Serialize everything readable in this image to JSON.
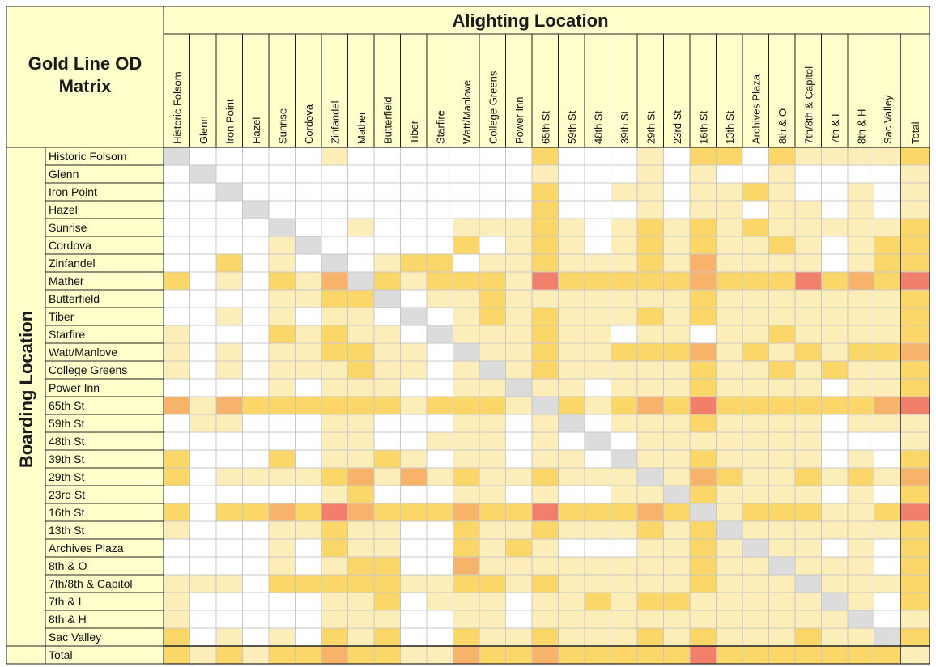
{
  "chart_data": {
    "type": "heatmap",
    "title": "Gold Line OD Matrix",
    "xlabel": "Alighting Location",
    "ylabel": "Boarding Location",
    "columns": [
      "Historic Folsom",
      "Glenn",
      "Iron Point",
      "Hazel",
      "Sunrise",
      "Cordova",
      "Zinfandel",
      "Mather",
      "Butterfield",
      "Tiber",
      "Starfire",
      "Watt/Manlove",
      "College Greens",
      "Power Inn",
      "65th St",
      "59th St",
      "48th St",
      "39th St",
      "29th St",
      "23rd St",
      "16th St",
      "13th St",
      "Archives Plaza",
      "8th & O",
      "7th/8th & Capitol",
      "7th & I",
      "8th & H",
      "Sac Valley",
      "Total"
    ],
    "rows": [
      "Historic Folsom",
      "Glenn",
      "Iron Point",
      "Hazel",
      "Sunrise",
      "Cordova",
      "Zinfandel",
      "Mather",
      "Butterfield",
      "Tiber",
      "Starfire",
      "Watt/Manlove",
      "College Greens",
      "Power Inn",
      "65th St",
      "59th St",
      "48th St",
      "39th St",
      "29th St",
      "23rd St",
      "16th St",
      "13th St",
      "Archives Plaza",
      "8th & O",
      "7th/8th & Capitol",
      "7th & I",
      "8th & H",
      "Sac Valley",
      "Total"
    ],
    "scale_note": "cell shading level 0-4 (none, light yellow, yellow, orange, red); -1 = diagonal (grey)",
    "values": [
      [
        -1,
        0,
        0,
        0,
        0,
        0,
        1,
        0,
        0,
        0,
        0,
        0,
        0,
        0,
        2,
        0,
        0,
        0,
        1,
        0,
        2,
        2,
        0,
        2,
        1,
        1,
        1,
        1,
        2
      ],
      [
        0,
        -1,
        0,
        0,
        0,
        0,
        0,
        0,
        0,
        0,
        0,
        0,
        0,
        0,
        1,
        0,
        0,
        0,
        1,
        0,
        1,
        0,
        0,
        1,
        0,
        0,
        0,
        0,
        1
      ],
      [
        0,
        0,
        -1,
        0,
        0,
        0,
        0,
        0,
        0,
        0,
        0,
        0,
        0,
        0,
        2,
        0,
        0,
        1,
        1,
        0,
        1,
        1,
        2,
        1,
        0,
        0,
        1,
        0,
        1
      ],
      [
        0,
        0,
        0,
        -1,
        0,
        0,
        0,
        0,
        0,
        0,
        0,
        0,
        0,
        0,
        2,
        0,
        0,
        0,
        1,
        0,
        1,
        1,
        0,
        1,
        1,
        0,
        1,
        0,
        1
      ],
      [
        0,
        0,
        0,
        0,
        -1,
        0,
        0,
        1,
        0,
        0,
        0,
        1,
        1,
        1,
        2,
        1,
        0,
        1,
        2,
        1,
        2,
        1,
        2,
        1,
        1,
        1,
        1,
        1,
        2
      ],
      [
        0,
        0,
        0,
        0,
        1,
        -1,
        0,
        0,
        0,
        0,
        0,
        2,
        0,
        1,
        2,
        1,
        0,
        1,
        2,
        1,
        2,
        1,
        1,
        2,
        1,
        0,
        1,
        2,
        2
      ],
      [
        0,
        0,
        2,
        0,
        1,
        0,
        -1,
        0,
        1,
        2,
        2,
        0,
        1,
        1,
        2,
        1,
        1,
        1,
        2,
        1,
        3,
        1,
        1,
        1,
        1,
        0,
        1,
        2,
        2
      ],
      [
        2,
        0,
        1,
        0,
        2,
        1,
        3,
        -1,
        2,
        1,
        2,
        2,
        2,
        1,
        4,
        2,
        2,
        2,
        2,
        2,
        3,
        2,
        2,
        2,
        4,
        2,
        3,
        2,
        4
      ],
      [
        0,
        0,
        0,
        0,
        1,
        1,
        2,
        2,
        -1,
        0,
        1,
        1,
        2,
        1,
        1,
        1,
        1,
        1,
        1,
        1,
        2,
        1,
        1,
        1,
        1,
        1,
        1,
        1,
        2
      ],
      [
        0,
        0,
        1,
        0,
        1,
        0,
        1,
        1,
        0,
        -1,
        0,
        1,
        2,
        1,
        2,
        1,
        1,
        1,
        2,
        1,
        2,
        1,
        1,
        1,
        1,
        1,
        1,
        1,
        2
      ],
      [
        1,
        0,
        0,
        0,
        2,
        1,
        2,
        1,
        1,
        0,
        -1,
        1,
        1,
        1,
        2,
        1,
        1,
        0,
        1,
        1,
        0,
        1,
        1,
        2,
        1,
        1,
        1,
        1,
        2
      ],
      [
        1,
        0,
        1,
        0,
        1,
        1,
        2,
        2,
        1,
        1,
        0,
        -1,
        1,
        1,
        2,
        1,
        1,
        2,
        2,
        2,
        3,
        1,
        2,
        1,
        2,
        1,
        2,
        2,
        3
      ],
      [
        1,
        0,
        1,
        0,
        1,
        1,
        1,
        2,
        1,
        1,
        0,
        1,
        -1,
        1,
        2,
        1,
        1,
        1,
        1,
        1,
        2,
        1,
        1,
        2,
        1,
        2,
        1,
        1,
        2
      ],
      [
        0,
        0,
        0,
        0,
        1,
        0,
        1,
        1,
        1,
        0,
        0,
        1,
        1,
        -1,
        1,
        1,
        0,
        1,
        1,
        1,
        2,
        1,
        1,
        1,
        1,
        0,
        1,
        1,
        2
      ],
      [
        3,
        1,
        3,
        2,
        2,
        2,
        2,
        2,
        2,
        1,
        2,
        2,
        2,
        1,
        -1,
        2,
        1,
        2,
        3,
        2,
        4,
        2,
        2,
        2,
        2,
        2,
        2,
        3,
        4
      ],
      [
        0,
        1,
        1,
        0,
        0,
        0,
        1,
        1,
        0,
        0,
        0,
        1,
        1,
        0,
        1,
        -1,
        0,
        1,
        1,
        1,
        2,
        1,
        1,
        1,
        1,
        0,
        1,
        1,
        1
      ],
      [
        0,
        0,
        0,
        0,
        0,
        0,
        1,
        1,
        0,
        0,
        1,
        1,
        1,
        0,
        1,
        0,
        -1,
        0,
        1,
        1,
        1,
        1,
        1,
        1,
        1,
        0,
        0,
        0,
        1
      ],
      [
        2,
        0,
        0,
        0,
        2,
        0,
        1,
        1,
        2,
        1,
        0,
        1,
        1,
        0,
        1,
        1,
        0,
        -1,
        1,
        1,
        2,
        1,
        1,
        1,
        1,
        0,
        1,
        0,
        2
      ],
      [
        2,
        0,
        1,
        1,
        1,
        1,
        2,
        3,
        1,
        3,
        1,
        2,
        1,
        1,
        2,
        1,
        1,
        1,
        -1,
        1,
        3,
        2,
        1,
        1,
        2,
        1,
        2,
        1,
        3
      ],
      [
        0,
        0,
        0,
        0,
        0,
        0,
        1,
        2,
        0,
        0,
        0,
        1,
        1,
        0,
        1,
        0,
        0,
        1,
        1,
        -1,
        2,
        1,
        1,
        1,
        1,
        0,
        1,
        0,
        2
      ],
      [
        2,
        0,
        2,
        2,
        3,
        2,
        4,
        3,
        2,
        2,
        2,
        3,
        2,
        2,
        4,
        2,
        2,
        2,
        3,
        2,
        -1,
        1,
        2,
        2,
        2,
        1,
        1,
        2,
        4
      ],
      [
        1,
        0,
        0,
        0,
        1,
        1,
        2,
        1,
        1,
        0,
        0,
        2,
        1,
        1,
        2,
        1,
        1,
        1,
        2,
        1,
        2,
        -1,
        1,
        1,
        1,
        1,
        1,
        1,
        2
      ],
      [
        0,
        0,
        0,
        0,
        1,
        0,
        2,
        1,
        1,
        0,
        0,
        2,
        1,
        2,
        1,
        0,
        0,
        0,
        1,
        1,
        2,
        1,
        -1,
        1,
        1,
        0,
        1,
        0,
        2
      ],
      [
        0,
        0,
        0,
        0,
        1,
        0,
        1,
        2,
        2,
        0,
        0,
        3,
        1,
        1,
        1,
        1,
        1,
        1,
        1,
        1,
        2,
        1,
        1,
        -1,
        1,
        1,
        1,
        0,
        2
      ],
      [
        1,
        1,
        1,
        0,
        2,
        2,
        2,
        2,
        2,
        1,
        1,
        2,
        2,
        1,
        2,
        1,
        1,
        1,
        1,
        1,
        2,
        1,
        1,
        1,
        -1,
        1,
        1,
        1,
        2
      ],
      [
        1,
        0,
        0,
        0,
        0,
        0,
        1,
        1,
        2,
        0,
        1,
        1,
        1,
        0,
        1,
        1,
        2,
        1,
        2,
        2,
        1,
        1,
        1,
        1,
        1,
        -1,
        1,
        0,
        2
      ],
      [
        1,
        0,
        0,
        0,
        0,
        0,
        1,
        1,
        1,
        0,
        0,
        1,
        1,
        0,
        1,
        1,
        1,
        1,
        1,
        1,
        1,
        1,
        1,
        1,
        1,
        1,
        -1,
        0,
        1
      ],
      [
        2,
        0,
        1,
        0,
        1,
        0,
        2,
        1,
        2,
        0,
        0,
        2,
        1,
        1,
        2,
        1,
        1,
        1,
        2,
        1,
        2,
        1,
        1,
        1,
        2,
        1,
        1,
        -1,
        2
      ],
      [
        2,
        1,
        2,
        1,
        2,
        2,
        3,
        2,
        2,
        1,
        1,
        3,
        2,
        2,
        3,
        2,
        2,
        2,
        2,
        2,
        4,
        2,
        2,
        2,
        2,
        2,
        2,
        2,
        1
      ]
    ],
    "colors": [
      "#ffffff",
      "#fdedb8",
      "#fbd76a",
      "#f8b36a",
      "#f07f6c"
    ],
    "diagonal_color": "#dcdcdc",
    "header_fill": "#ffffcc",
    "grid": true
  }
}
